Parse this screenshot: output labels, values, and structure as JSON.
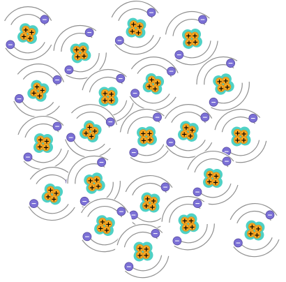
{
  "scene": {
    "description_free": true,
    "colors": {
      "electron_fill": "#7b70d6",
      "nucleus_halo": "#4fd1c5",
      "proton_fill": "#f5a623",
      "orbit_stroke": "#8f8f8f",
      "background": "#ffffff"
    },
    "electron_symbol": "−",
    "proton_symbol": "+",
    "atom_count": 21
  }
}
